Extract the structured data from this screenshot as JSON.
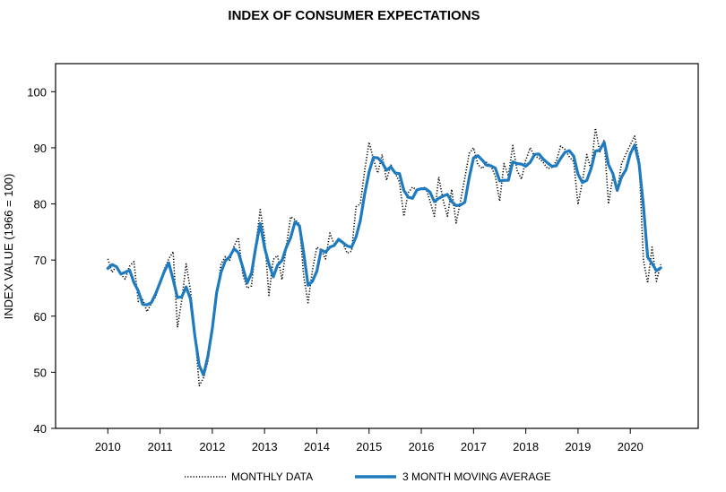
{
  "chart_data": {
    "type": "line",
    "title": "INDEX OF CONSUMER EXPECTATIONS",
    "ylabel": "INDEX VALUE (1966 = 100)",
    "xlabel": "",
    "ylim": [
      40,
      105
    ],
    "xlim": [
      2009.0,
      2021.3
    ],
    "yticks": [
      40,
      50,
      60,
      70,
      80,
      90,
      100
    ],
    "xticks": [
      2010,
      2011,
      2012,
      2013,
      2014,
      2015,
      2016,
      2017,
      2018,
      2019,
      2020
    ],
    "xtick_labels": [
      "2010",
      "2011",
      "2012",
      "2013",
      "2014",
      "2015",
      "2016",
      "2017",
      "2018",
      "2019",
      "2020"
    ],
    "legend_position": "bottom",
    "grid": false,
    "series": [
      {
        "name": "MONTHLY DATA",
        "style": "dotted",
        "color": "#000000",
        "points": [
          [
            2010.0,
            70.2
          ],
          [
            2010.083,
            67.8
          ],
          [
            2010.167,
            69.0
          ],
          [
            2010.25,
            67.4
          ],
          [
            2010.333,
            66.6
          ],
          [
            2010.417,
            68.9
          ],
          [
            2010.5,
            69.7
          ],
          [
            2010.583,
            62.6
          ],
          [
            2010.667,
            63.0
          ],
          [
            2010.75,
            60.8
          ],
          [
            2010.833,
            62.3
          ],
          [
            2010.917,
            63.5
          ],
          [
            2011.0,
            65.8
          ],
          [
            2011.083,
            68.4
          ],
          [
            2011.167,
            70.2
          ],
          [
            2011.25,
            71.5
          ],
          [
            2011.333,
            58.0
          ],
          [
            2011.417,
            63.0
          ],
          [
            2011.5,
            69.3
          ],
          [
            2011.583,
            64.5
          ],
          [
            2011.667,
            57.0
          ],
          [
            2011.75,
            47.6
          ],
          [
            2011.833,
            49.0
          ],
          [
            2011.917,
            52.0
          ],
          [
            2012.0,
            57.8
          ],
          [
            2012.083,
            63.5
          ],
          [
            2012.167,
            69.3
          ],
          [
            2012.25,
            70.6
          ],
          [
            2012.333,
            70.0
          ],
          [
            2012.417,
            72.5
          ],
          [
            2012.5,
            74.0
          ],
          [
            2012.583,
            67.4
          ],
          [
            2012.667,
            65.0
          ],
          [
            2012.75,
            65.4
          ],
          [
            2012.833,
            72.6
          ],
          [
            2012.917,
            79.0
          ],
          [
            2013.0,
            74.0
          ],
          [
            2013.083,
            63.7
          ],
          [
            2013.167,
            70.1
          ],
          [
            2013.25,
            70.8
          ],
          [
            2013.333,
            66.5
          ],
          [
            2013.417,
            72.5
          ],
          [
            2013.5,
            77.7
          ],
          [
            2013.583,
            77.2
          ],
          [
            2013.667,
            76.4
          ],
          [
            2013.75,
            67.0
          ],
          [
            2013.833,
            62.4
          ],
          [
            2013.917,
            68.2
          ],
          [
            2014.0,
            72.3
          ],
          [
            2014.083,
            71.8
          ],
          [
            2014.167,
            70.2
          ],
          [
            2014.25,
            74.8
          ],
          [
            2014.333,
            72.8
          ],
          [
            2014.417,
            73.4
          ],
          [
            2014.5,
            73.0
          ],
          [
            2014.583,
            71.2
          ],
          [
            2014.667,
            71.6
          ],
          [
            2014.75,
            79.5
          ],
          [
            2014.833,
            80.0
          ],
          [
            2014.917,
            86.0
          ],
          [
            2015.0,
            91.0
          ],
          [
            2015.083,
            88.0
          ],
          [
            2015.167,
            85.5
          ],
          [
            2015.25,
            88.8
          ],
          [
            2015.333,
            84.2
          ],
          [
            2015.417,
            86.9
          ],
          [
            2015.5,
            85.5
          ],
          [
            2015.583,
            83.9
          ],
          [
            2015.667,
            77.8
          ],
          [
            2015.75,
            82.0
          ],
          [
            2015.833,
            83.0
          ],
          [
            2015.917,
            82.4
          ],
          [
            2016.0,
            82.7
          ],
          [
            2016.083,
            83.0
          ],
          [
            2016.167,
            80.5
          ],
          [
            2016.25,
            77.8
          ],
          [
            2016.333,
            84.8
          ],
          [
            2016.417,
            80.7
          ],
          [
            2016.5,
            77.8
          ],
          [
            2016.583,
            82.6
          ],
          [
            2016.667,
            76.6
          ],
          [
            2016.75,
            80.5
          ],
          [
            2016.833,
            84.6
          ],
          [
            2016.917,
            89.0
          ],
          [
            2017.0,
            90.0
          ],
          [
            2017.083,
            87.0
          ],
          [
            2017.167,
            86.3
          ],
          [
            2017.25,
            87.4
          ],
          [
            2017.333,
            86.7
          ],
          [
            2017.417,
            85.0
          ],
          [
            2017.5,
            80.5
          ],
          [
            2017.583,
            87.2
          ],
          [
            2017.667,
            85.0
          ],
          [
            2017.75,
            90.4
          ],
          [
            2017.833,
            86.0
          ],
          [
            2017.917,
            84.4
          ],
          [
            2018.0,
            87.8
          ],
          [
            2018.083,
            90.0
          ],
          [
            2018.167,
            88.5
          ],
          [
            2018.25,
            88.2
          ],
          [
            2018.333,
            87.4
          ],
          [
            2018.417,
            86.3
          ],
          [
            2018.5,
            86.5
          ],
          [
            2018.583,
            87.6
          ],
          [
            2018.667,
            90.3
          ],
          [
            2018.75,
            89.7
          ],
          [
            2018.833,
            88.4
          ],
          [
            2018.917,
            87.5
          ],
          [
            2019.0,
            79.9
          ],
          [
            2019.083,
            84.0
          ],
          [
            2019.167,
            88.8
          ],
          [
            2019.25,
            86.0
          ],
          [
            2019.333,
            93.5
          ],
          [
            2019.417,
            89.3
          ],
          [
            2019.5,
            91.4
          ],
          [
            2019.583,
            80.0
          ],
          [
            2019.667,
            84.9
          ],
          [
            2019.75,
            82.3
          ],
          [
            2019.833,
            87.2
          ],
          [
            2019.917,
            88.9
          ],
          [
            2020.0,
            90.5
          ],
          [
            2020.083,
            92.1
          ],
          [
            2020.167,
            88.0
          ],
          [
            2020.25,
            70.1
          ],
          [
            2020.333,
            65.9
          ],
          [
            2020.417,
            72.3
          ],
          [
            2020.5,
            66.2
          ],
          [
            2020.583,
            69.2
          ]
        ]
      },
      {
        "name": "3 MONTH MOVING AVERAGE",
        "style": "solid",
        "color": "#1f7bbf",
        "points": [
          [
            2010.0,
            68.5
          ],
          [
            2010.083,
            69.2
          ],
          [
            2010.167,
            68.8
          ],
          [
            2010.25,
            67.5
          ],
          [
            2010.333,
            67.8
          ],
          [
            2010.417,
            68.2
          ],
          [
            2010.5,
            66.0
          ],
          [
            2010.583,
            64.5
          ],
          [
            2010.667,
            62.1
          ],
          [
            2010.75,
            62.0
          ],
          [
            2010.833,
            62.4
          ],
          [
            2010.917,
            64.0
          ],
          [
            2011.0,
            66.0
          ],
          [
            2011.083,
            68.0
          ],
          [
            2011.167,
            69.5
          ],
          [
            2011.25,
            66.5
          ],
          [
            2011.333,
            63.3
          ],
          [
            2011.417,
            63.5
          ],
          [
            2011.5,
            65.2
          ],
          [
            2011.583,
            63.0
          ],
          [
            2011.667,
            56.4
          ],
          [
            2011.75,
            51.2
          ],
          [
            2011.833,
            49.5
          ],
          [
            2011.917,
            52.9
          ],
          [
            2012.0,
            57.8
          ],
          [
            2012.083,
            64.2
          ],
          [
            2012.167,
            67.8
          ],
          [
            2012.25,
            69.9
          ],
          [
            2012.333,
            70.6
          ],
          [
            2012.417,
            72.0
          ],
          [
            2012.5,
            71.3
          ],
          [
            2012.583,
            68.7
          ],
          [
            2012.667,
            65.9
          ],
          [
            2012.75,
            67.7
          ],
          [
            2012.833,
            72.3
          ],
          [
            2012.917,
            76.5
          ],
          [
            2013.0,
            72.2
          ],
          [
            2013.083,
            69.3
          ],
          [
            2013.167,
            67.0
          ],
          [
            2013.25,
            69.1
          ],
          [
            2013.333,
            69.9
          ],
          [
            2013.417,
            72.3
          ],
          [
            2013.5,
            74.0
          ],
          [
            2013.583,
            76.8
          ],
          [
            2013.667,
            76.1
          ],
          [
            2013.75,
            71.2
          ],
          [
            2013.833,
            65.5
          ],
          [
            2013.917,
            66.2
          ],
          [
            2014.0,
            68.0
          ],
          [
            2014.083,
            71.8
          ],
          [
            2014.167,
            71.4
          ],
          [
            2014.25,
            72.3
          ],
          [
            2014.333,
            72.6
          ],
          [
            2014.417,
            73.7
          ],
          [
            2014.5,
            73.1
          ],
          [
            2014.583,
            72.5
          ],
          [
            2014.667,
            72.3
          ],
          [
            2014.75,
            74.1
          ],
          [
            2014.833,
            77.0
          ],
          [
            2014.917,
            81.8
          ],
          [
            2015.0,
            85.7
          ],
          [
            2015.083,
            88.3
          ],
          [
            2015.167,
            88.2
          ],
          [
            2015.25,
            87.4
          ],
          [
            2015.333,
            86.0
          ],
          [
            2015.417,
            86.6
          ],
          [
            2015.5,
            85.5
          ],
          [
            2015.583,
            85.4
          ],
          [
            2015.667,
            82.4
          ],
          [
            2015.75,
            81.2
          ],
          [
            2015.833,
            81.0
          ],
          [
            2015.917,
            82.5
          ],
          [
            2016.0,
            82.7
          ],
          [
            2016.083,
            82.7
          ],
          [
            2016.167,
            82.1
          ],
          [
            2016.25,
            80.4
          ],
          [
            2016.333,
            81.0
          ],
          [
            2016.417,
            81.4
          ],
          [
            2016.5,
            81.7
          ],
          [
            2016.583,
            80.4
          ],
          [
            2016.667,
            79.7
          ],
          [
            2016.75,
            79.8
          ],
          [
            2016.833,
            80.3
          ],
          [
            2016.917,
            84.7
          ],
          [
            2017.0,
            88.2
          ],
          [
            2017.083,
            88.6
          ],
          [
            2017.167,
            87.8
          ],
          [
            2017.25,
            86.9
          ],
          [
            2017.333,
            86.8
          ],
          [
            2017.417,
            86.4
          ],
          [
            2017.5,
            84.1
          ],
          [
            2017.583,
            84.2
          ],
          [
            2017.667,
            84.2
          ],
          [
            2017.75,
            87.5
          ],
          [
            2017.833,
            87.2
          ],
          [
            2017.917,
            87.1
          ],
          [
            2018.0,
            86.7
          ],
          [
            2018.083,
            87.4
          ],
          [
            2018.167,
            88.8
          ],
          [
            2018.25,
            88.9
          ],
          [
            2018.333,
            88.0
          ],
          [
            2018.417,
            87.3
          ],
          [
            2018.5,
            86.7
          ],
          [
            2018.583,
            86.8
          ],
          [
            2018.667,
            88.1
          ],
          [
            2018.75,
            89.2
          ],
          [
            2018.833,
            89.5
          ],
          [
            2018.917,
            88.5
          ],
          [
            2019.0,
            85.3
          ],
          [
            2019.083,
            83.8
          ],
          [
            2019.167,
            84.2
          ],
          [
            2019.25,
            86.3
          ],
          [
            2019.333,
            89.4
          ],
          [
            2019.417,
            89.6
          ],
          [
            2019.5,
            91.0
          ],
          [
            2019.583,
            87.0
          ],
          [
            2019.667,
            85.4
          ],
          [
            2019.75,
            82.4
          ],
          [
            2019.833,
            84.8
          ],
          [
            2019.917,
            86.1
          ],
          [
            2020.0,
            88.9
          ],
          [
            2020.083,
            90.5
          ],
          [
            2020.167,
            87.2
          ],
          [
            2020.25,
            79.8
          ],
          [
            2020.333,
            70.5
          ],
          [
            2020.417,
            69.4
          ],
          [
            2020.5,
            68.1
          ],
          [
            2020.583,
            68.6
          ]
        ]
      }
    ]
  }
}
